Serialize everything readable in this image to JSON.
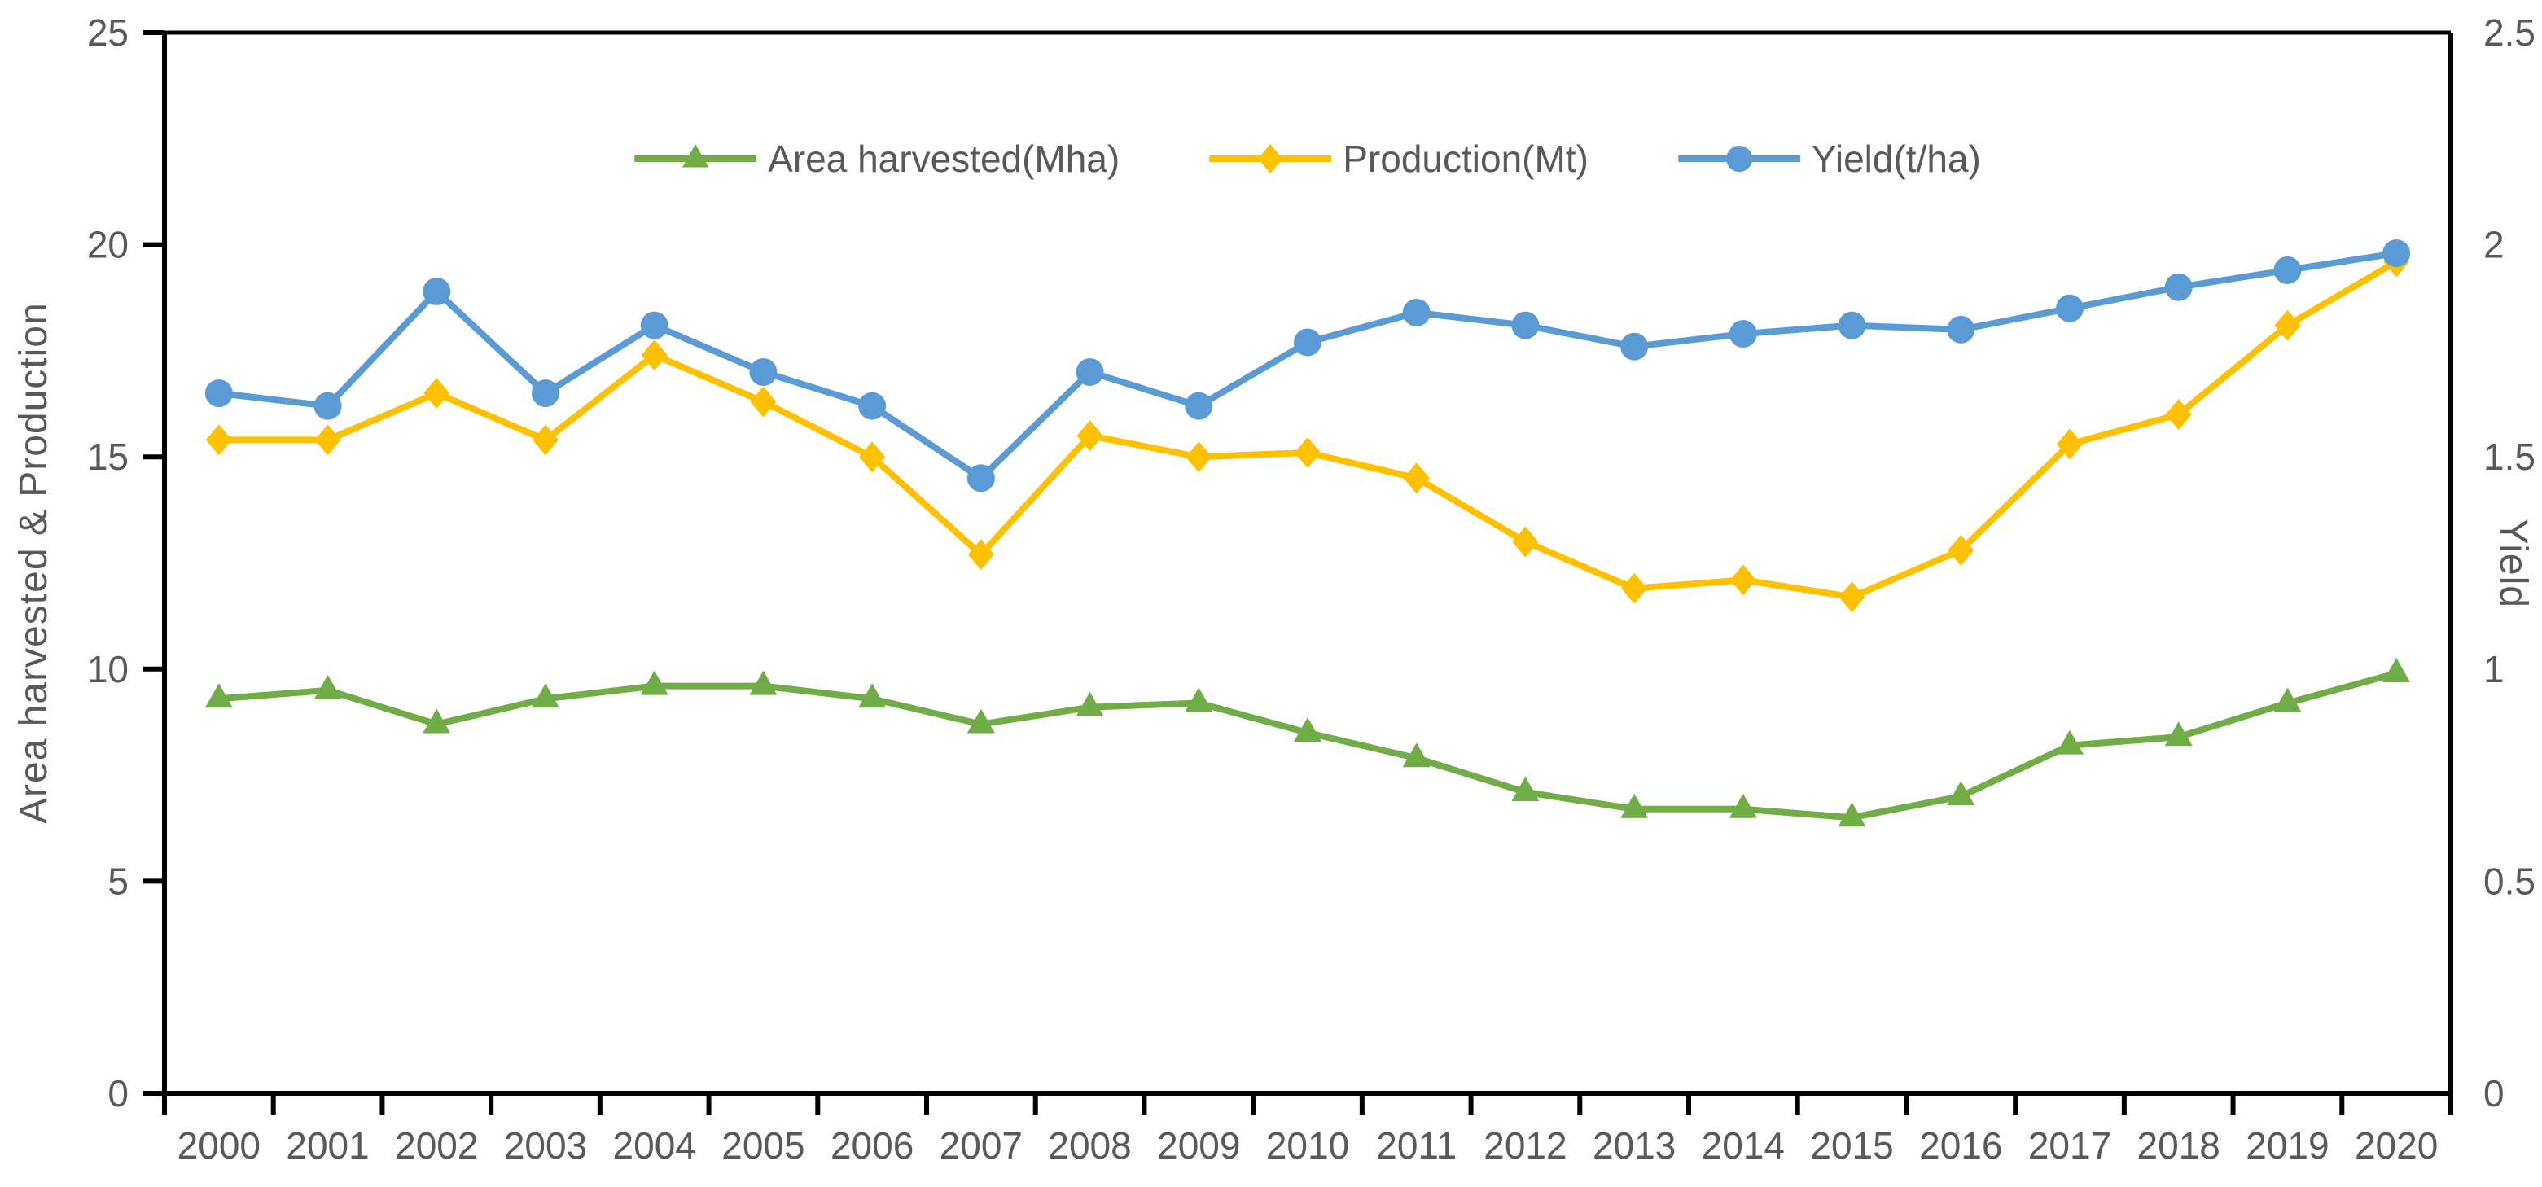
{
  "chart_data": {
    "type": "line",
    "title": "",
    "categories": [
      "2000",
      "2001",
      "2002",
      "2003",
      "2004",
      "2005",
      "2006",
      "2007",
      "2008",
      "2009",
      "2010",
      "2011",
      "2012",
      "2013",
      "2014",
      "2015",
      "2016",
      "2017",
      "2018",
      "2019",
      "2020"
    ],
    "series": [
      {
        "name": "Area harvested(Mha)",
        "color": "#70AD47",
        "marker": "triangle",
        "axis": "left",
        "values": [
          9.3,
          9.5,
          8.7,
          9.3,
          9.6,
          9.6,
          9.3,
          8.7,
          9.1,
          9.2,
          8.5,
          7.9,
          7.1,
          6.7,
          6.7,
          6.5,
          7.0,
          8.2,
          8.4,
          9.2,
          9.9
        ]
      },
      {
        "name": "Production(Mt)",
        "color": "#FFC000",
        "marker": "diamond",
        "axis": "left",
        "values": [
          15.4,
          15.4,
          16.5,
          15.4,
          17.4,
          16.3,
          15.0,
          12.7,
          15.5,
          15.0,
          15.1,
          14.5,
          13.0,
          11.9,
          12.1,
          11.7,
          12.8,
          15.3,
          16.0,
          18.1,
          19.6
        ]
      },
      {
        "name": "Yield(t/ha)",
        "color": "#5B9BD5",
        "marker": "circle",
        "axis": "right",
        "values": [
          1.65,
          1.62,
          1.89,
          1.65,
          1.81,
          1.7,
          1.62,
          1.45,
          1.7,
          1.62,
          1.77,
          1.84,
          1.81,
          1.76,
          1.79,
          1.81,
          1.8,
          1.85,
          1.9,
          1.94,
          1.98
        ]
      }
    ],
    "left_axis": {
      "title": "Area harvested & Production",
      "range": [
        0,
        25
      ],
      "ticks": [
        {
          "value": 0,
          "label": "0"
        },
        {
          "value": 5,
          "label": "5"
        },
        {
          "value": 10,
          "label": "10"
        },
        {
          "value": 15,
          "label": "15"
        },
        {
          "value": 20,
          "label": "20"
        },
        {
          "value": 25,
          "label": "25"
        }
      ]
    },
    "right_axis": {
      "title": "Yield",
      "range": [
        0,
        2.5
      ],
      "ticks": [
        {
          "value": 0,
          "label": "0"
        },
        {
          "value": 0.5,
          "label": "0.5"
        },
        {
          "value": 1,
          "label": "1"
        },
        {
          "value": 1.5,
          "label": "1.5"
        },
        {
          "value": 2,
          "label": "2"
        },
        {
          "value": 2.5,
          "label": "2.5"
        }
      ]
    },
    "legend_position": "top",
    "grid": false,
    "styles": {
      "text_color": "#595959",
      "axis_color": "#000000",
      "background": "#FFFFFF"
    }
  }
}
